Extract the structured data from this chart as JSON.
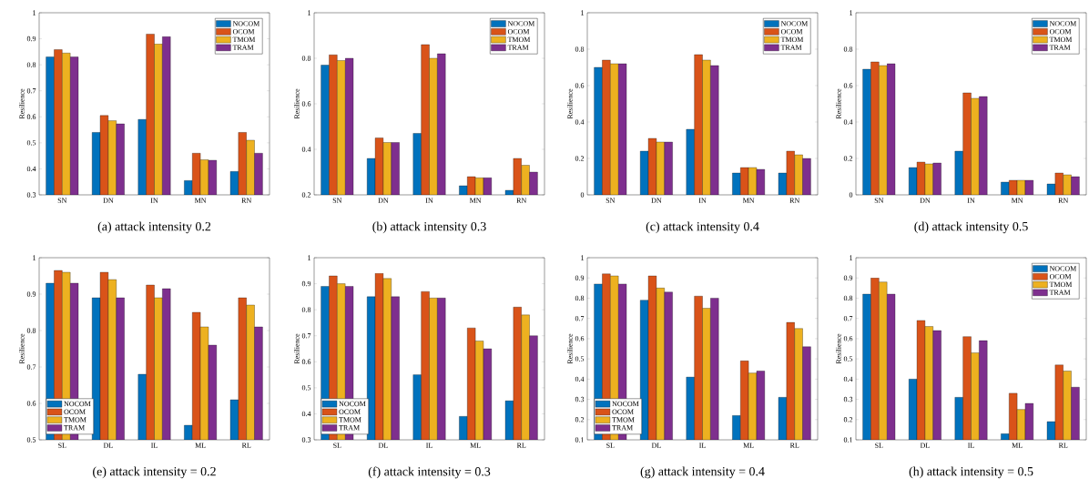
{
  "chart_data": [
    {
      "type": "bar",
      "title": "(a) attack intensity 0.2",
      "ylabel": "Resilience",
      "categories": [
        "SN",
        "DN",
        "IN",
        "MN",
        "RN"
      ],
      "ylim": [
        0.3,
        1
      ],
      "yticks": [
        0.3,
        0.4,
        0.5,
        0.6,
        0.7,
        0.8,
        0.9,
        1
      ],
      "legend": "top right",
      "series": [
        {
          "name": "NOCOM",
          "color": "#0072bd",
          "values": [
            0.83,
            0.54,
            0.59,
            0.355,
            0.39
          ]
        },
        {
          "name": "OCOM",
          "color": "#d95319",
          "values": [
            0.858,
            0.605,
            0.918,
            0.46,
            0.54
          ]
        },
        {
          "name": "TMOM",
          "color": "#edb120",
          "values": [
            0.845,
            0.585,
            0.88,
            0.435,
            0.51
          ]
        },
        {
          "name": "TRAM",
          "color": "#7e2f8e",
          "values": [
            0.83,
            0.573,
            0.908,
            0.433,
            0.46
          ]
        }
      ]
    },
    {
      "type": "bar",
      "title": "(b) attack intensity 0.3",
      "ylabel": "Resilience",
      "categories": [
        "SN",
        "DN",
        "IN",
        "MN",
        "RN"
      ],
      "ylim": [
        0.2,
        1
      ],
      "yticks": [
        0.2,
        0.4,
        0.6,
        0.8,
        1
      ],
      "legend": "top right",
      "series": [
        {
          "name": "NOCOM",
          "color": "#0072bd",
          "values": [
            0.77,
            0.36,
            0.47,
            0.24,
            0.22
          ]
        },
        {
          "name": "OCOM",
          "color": "#d95319",
          "values": [
            0.815,
            0.45,
            0.86,
            0.28,
            0.36
          ]
        },
        {
          "name": "TMOM",
          "color": "#edb120",
          "values": [
            0.79,
            0.43,
            0.8,
            0.275,
            0.33
          ]
        },
        {
          "name": "TRAM",
          "color": "#7e2f8e",
          "values": [
            0.8,
            0.43,
            0.82,
            0.275,
            0.3
          ]
        }
      ]
    },
    {
      "type": "bar",
      "title": "(c) attack intensity 0.4",
      "ylabel": "Resilience",
      "categories": [
        "SN",
        "DN",
        "IN",
        "MN",
        "RN"
      ],
      "ylim": [
        0,
        1
      ],
      "yticks": [
        0,
        0.2,
        0.4,
        0.6,
        0.8,
        1
      ],
      "legend": "top right",
      "series": [
        {
          "name": "NOCOM",
          "color": "#0072bd",
          "values": [
            0.7,
            0.24,
            0.36,
            0.12,
            0.12
          ]
        },
        {
          "name": "OCOM",
          "color": "#d95319",
          "values": [
            0.74,
            0.31,
            0.77,
            0.15,
            0.24
          ]
        },
        {
          "name": "TMOM",
          "color": "#edb120",
          "values": [
            0.72,
            0.29,
            0.74,
            0.15,
            0.22
          ]
        },
        {
          "name": "TRAM",
          "color": "#7e2f8e",
          "values": [
            0.72,
            0.29,
            0.71,
            0.14,
            0.2
          ]
        }
      ]
    },
    {
      "type": "bar",
      "title": "(d) attack intensity 0.5",
      "ylabel": "Resilience",
      "categories": [
        "SN",
        "DN",
        "IN",
        "MN",
        "RN"
      ],
      "ylim": [
        0,
        1
      ],
      "yticks": [
        0,
        0.2,
        0.4,
        0.6,
        0.8,
        1
      ],
      "legend": "top right",
      "series": [
        {
          "name": "NOCOM",
          "color": "#0072bd",
          "values": [
            0.69,
            0.15,
            0.24,
            0.07,
            0.06
          ]
        },
        {
          "name": "OCOM",
          "color": "#d95319",
          "values": [
            0.73,
            0.18,
            0.56,
            0.08,
            0.12
          ]
        },
        {
          "name": "TMOM",
          "color": "#edb120",
          "values": [
            0.71,
            0.17,
            0.53,
            0.08,
            0.11
          ]
        },
        {
          "name": "TRAM",
          "color": "#7e2f8e",
          "values": [
            0.72,
            0.175,
            0.54,
            0.08,
            0.1
          ]
        }
      ]
    },
    {
      "type": "bar",
      "title": "(e) attack intensity = 0.2",
      "ylabel": "Resilience",
      "categories": [
        "SL",
        "DL",
        "IL",
        "ML",
        "RL"
      ],
      "ylim": [
        0.5,
        1
      ],
      "yticks": [
        0.5,
        0.6,
        0.7,
        0.8,
        0.9,
        1
      ],
      "legend": "bottom left",
      "series": [
        {
          "name": "NOCOM",
          "color": "#0072bd",
          "values": [
            0.93,
            0.89,
            0.68,
            0.54,
            0.61
          ]
        },
        {
          "name": "OCOM",
          "color": "#d95319",
          "values": [
            0.965,
            0.96,
            0.925,
            0.85,
            0.89
          ]
        },
        {
          "name": "TMOM",
          "color": "#edb120",
          "values": [
            0.96,
            0.94,
            0.89,
            0.81,
            0.87
          ]
        },
        {
          "name": "TRAM",
          "color": "#7e2f8e",
          "values": [
            0.93,
            0.89,
            0.915,
            0.76,
            0.81
          ]
        }
      ]
    },
    {
      "type": "bar",
      "title": "(f) attack intensity = 0.3",
      "ylabel": "Resilience",
      "categories": [
        "SL",
        "DL",
        "IL",
        "ML",
        "RL"
      ],
      "ylim": [
        0.3,
        1
      ],
      "yticks": [
        0.3,
        0.4,
        0.5,
        0.6,
        0.7,
        0.8,
        0.9,
        1
      ],
      "legend": "bottom left",
      "series": [
        {
          "name": "NOCOM",
          "color": "#0072bd",
          "values": [
            0.89,
            0.85,
            0.55,
            0.39,
            0.45
          ]
        },
        {
          "name": "OCOM",
          "color": "#d95319",
          "values": [
            0.93,
            0.94,
            0.87,
            0.73,
            0.81
          ]
        },
        {
          "name": "TMOM",
          "color": "#edb120",
          "values": [
            0.9,
            0.92,
            0.845,
            0.68,
            0.78
          ]
        },
        {
          "name": "TRAM",
          "color": "#7e2f8e",
          "values": [
            0.89,
            0.85,
            0.845,
            0.65,
            0.7
          ]
        }
      ]
    },
    {
      "type": "bar",
      "title": "(g) attack intensity = 0.4",
      "ylabel": "Resilience",
      "categories": [
        "SL",
        "DL",
        "IL",
        "ML",
        "RL"
      ],
      "ylim": [
        0.1,
        1
      ],
      "yticks": [
        0.1,
        0.2,
        0.3,
        0.4,
        0.5,
        0.6,
        0.7,
        0.8,
        0.9,
        1
      ],
      "legend": "bottom left",
      "series": [
        {
          "name": "NOCOM",
          "color": "#0072bd",
          "values": [
            0.87,
            0.79,
            0.41,
            0.22,
            0.31
          ]
        },
        {
          "name": "OCOM",
          "color": "#d95319",
          "values": [
            0.92,
            0.91,
            0.81,
            0.49,
            0.68
          ]
        },
        {
          "name": "TMOM",
          "color": "#edb120",
          "values": [
            0.91,
            0.85,
            0.75,
            0.43,
            0.65
          ]
        },
        {
          "name": "TRAM",
          "color": "#7e2f8e",
          "values": [
            0.87,
            0.83,
            0.8,
            0.44,
            0.56
          ]
        }
      ]
    },
    {
      "type": "bar",
      "title": "(h) attack intensity = 0.5",
      "ylabel": "Resilience",
      "categories": [
        "SL",
        "DL",
        "IL",
        "ML",
        "RL"
      ],
      "ylim": [
        0.1,
        1
      ],
      "yticks": [
        0.1,
        0.2,
        0.3,
        0.4,
        0.5,
        0.6,
        0.7,
        0.8,
        0.9,
        1
      ],
      "legend": "top right",
      "series": [
        {
          "name": "NOCOM",
          "color": "#0072bd",
          "values": [
            0.82,
            0.4,
            0.31,
            0.13,
            0.19
          ]
        },
        {
          "name": "OCOM",
          "color": "#d95319",
          "values": [
            0.9,
            0.69,
            0.61,
            0.33,
            0.47
          ]
        },
        {
          "name": "TMOM",
          "color": "#edb120",
          "values": [
            0.88,
            0.66,
            0.53,
            0.25,
            0.44
          ]
        },
        {
          "name": "TRAM",
          "color": "#7e2f8e",
          "values": [
            0.82,
            0.64,
            0.59,
            0.28,
            0.36
          ]
        }
      ]
    }
  ]
}
